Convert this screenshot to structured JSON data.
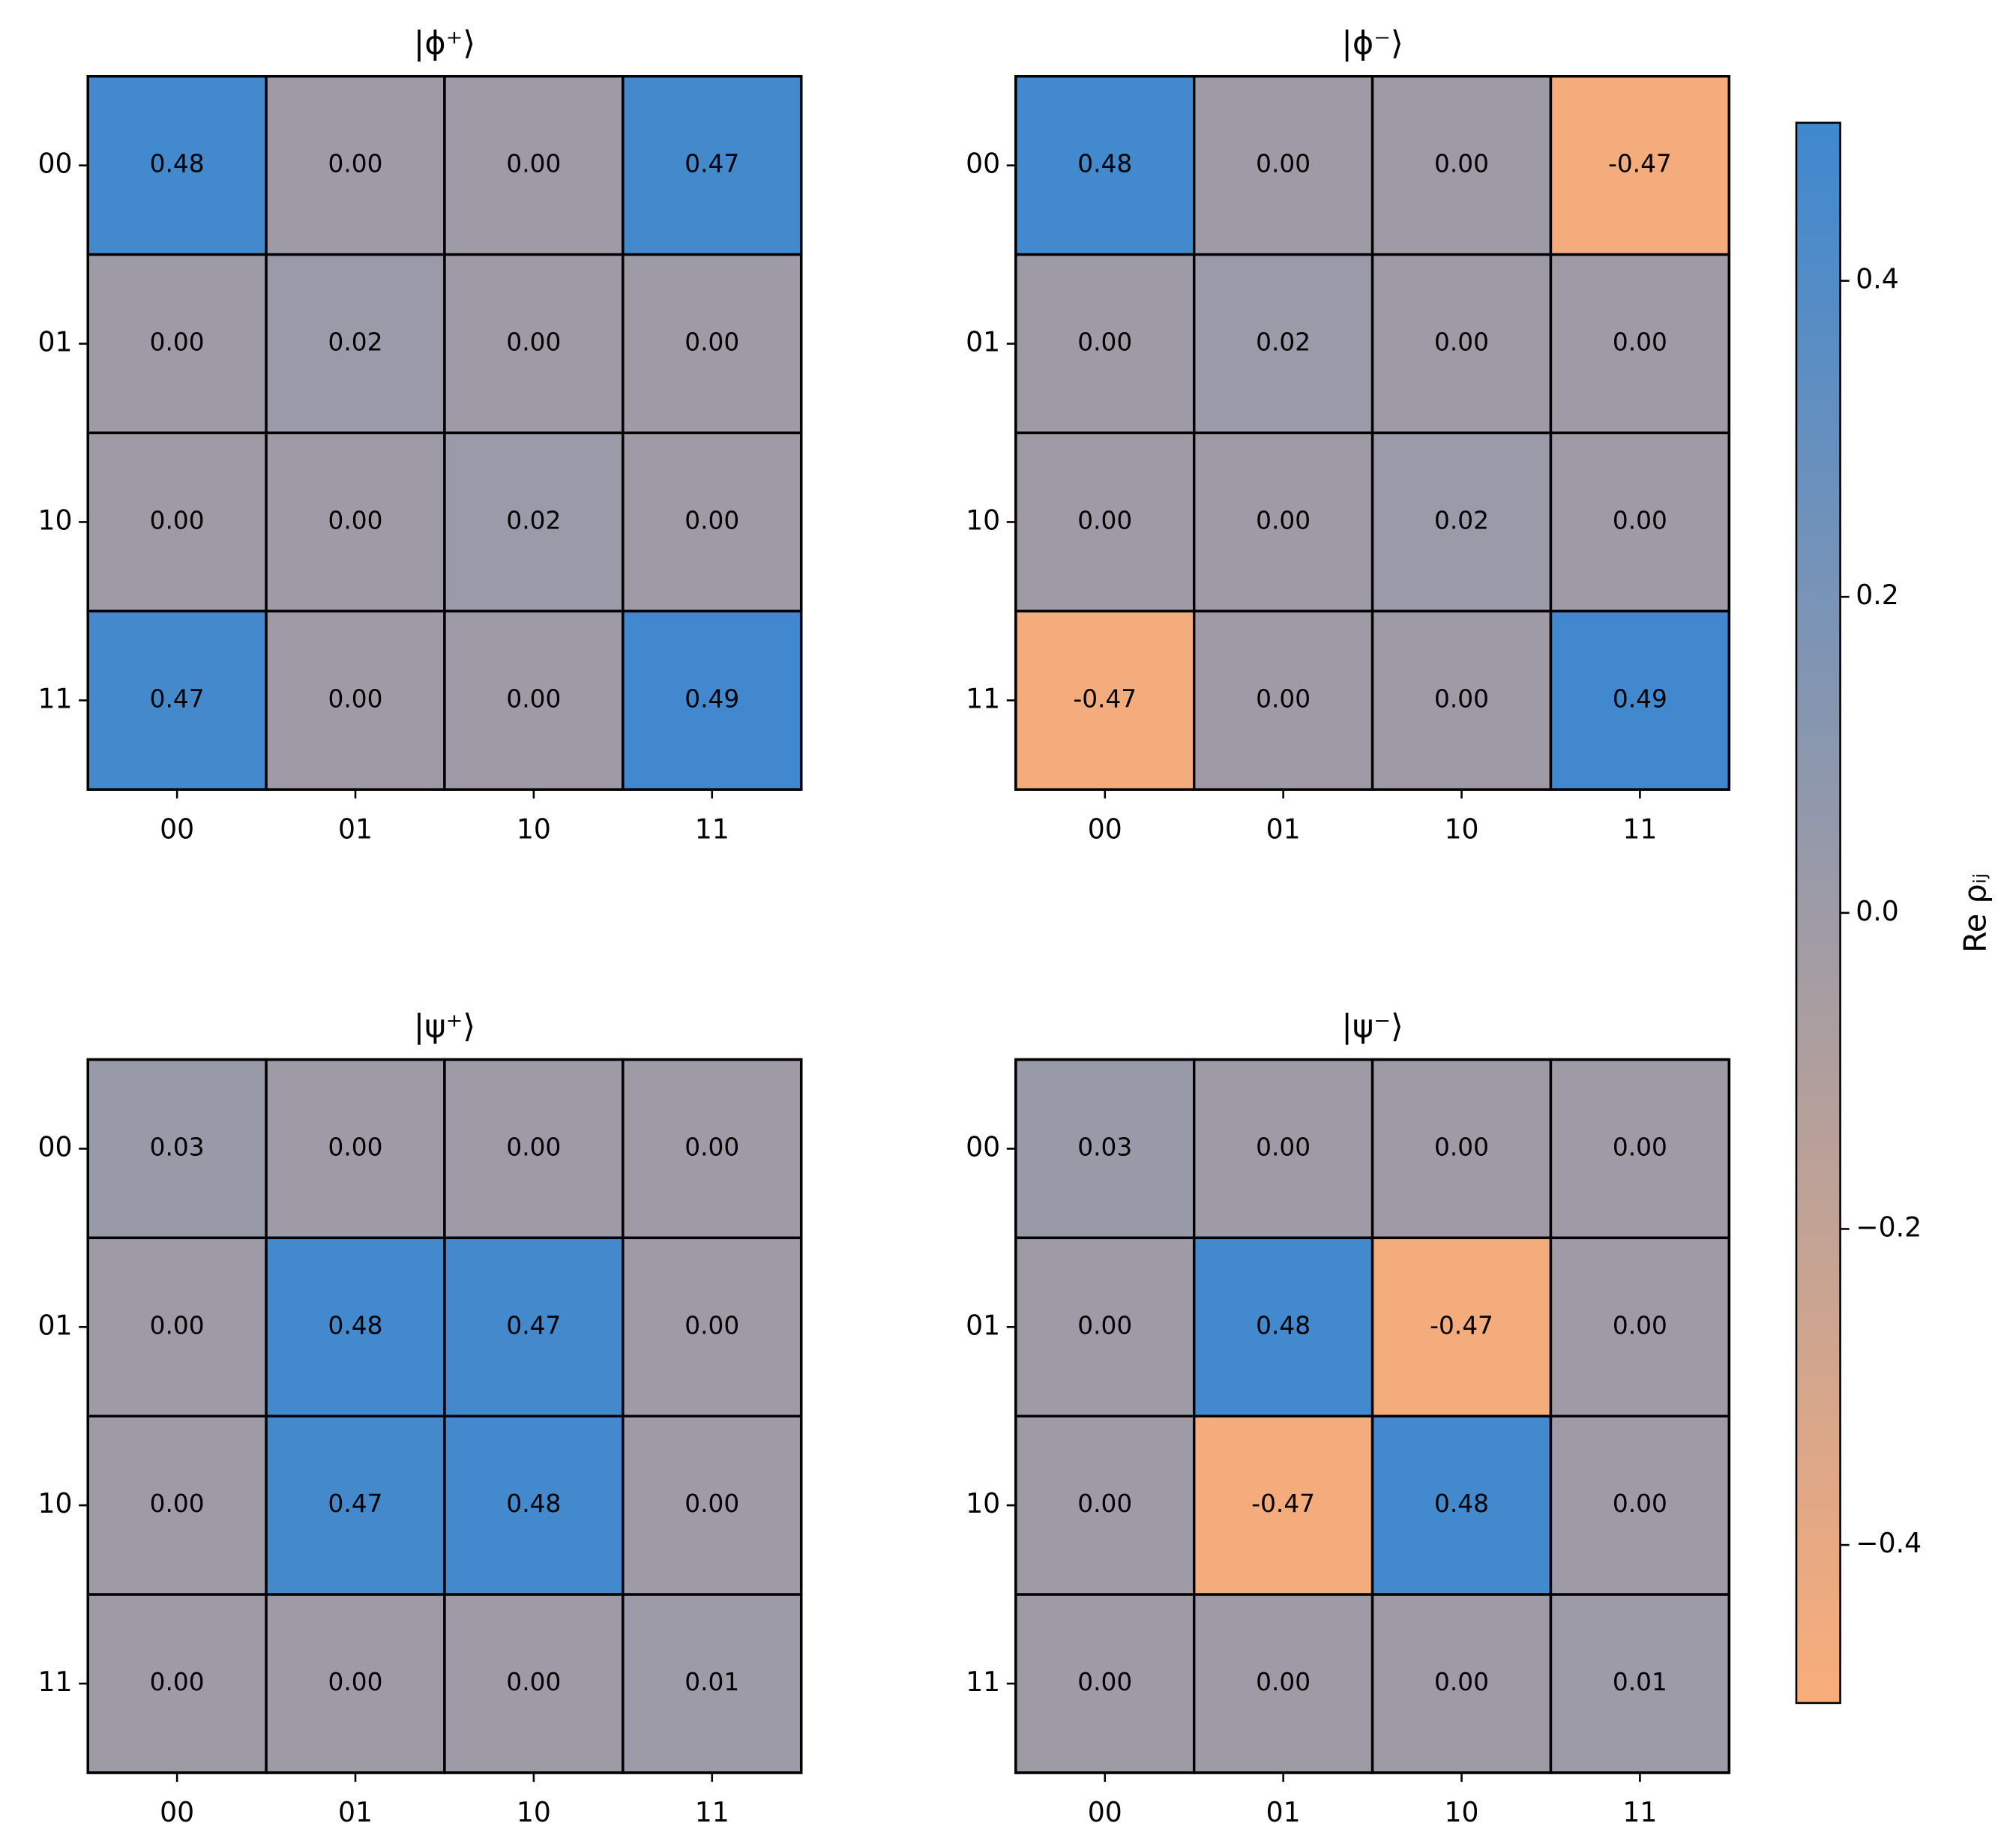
{
  "chart_data": [
    {
      "type": "heatmap",
      "title": "|ϕ⁺⟩",
      "x": [
        "00",
        "01",
        "10",
        "11"
      ],
      "y": [
        "00",
        "01",
        "10",
        "11"
      ],
      "values": [
        [
          0.48,
          0,
          0,
          0.47
        ],
        [
          0,
          0.02,
          0,
          0
        ],
        [
          0,
          0,
          0.02,
          0
        ],
        [
          0.47,
          0,
          0,
          0.49
        ]
      ],
      "value_labels": [
        [
          "0.48",
          "0.00",
          "0.00",
          "0.47"
        ],
        [
          "0.00",
          "0.02",
          "0.00",
          "0.00"
        ],
        [
          "0.00",
          "0.00",
          "0.02",
          "0.00"
        ],
        [
          "0.47",
          "0.00",
          "0.00",
          "0.49"
        ]
      ]
    },
    {
      "type": "heatmap",
      "title": "|ϕ⁻⟩",
      "x": [
        "00",
        "01",
        "10",
        "11"
      ],
      "y": [
        "00",
        "01",
        "10",
        "11"
      ],
      "values": [
        [
          0.48,
          0,
          0,
          -0.47
        ],
        [
          0,
          0.02,
          0,
          0
        ],
        [
          0,
          0,
          0.02,
          0
        ],
        [
          -0.47,
          0,
          0,
          0.49
        ]
      ],
      "value_labels": [
        [
          "0.48",
          "0.00",
          "0.00",
          "-0.47"
        ],
        [
          "0.00",
          "0.02",
          "0.00",
          "0.00"
        ],
        [
          "0.00",
          "0.00",
          "0.02",
          "0.00"
        ],
        [
          "-0.47",
          "0.00",
          "0.00",
          "0.49"
        ]
      ]
    },
    {
      "type": "heatmap",
      "title": "|ψ⁺⟩",
      "x": [
        "00",
        "01",
        "10",
        "11"
      ],
      "y": [
        "00",
        "01",
        "10",
        "11"
      ],
      "values": [
        [
          0.03,
          0,
          0,
          0
        ],
        [
          0,
          0.48,
          0.47,
          0
        ],
        [
          0,
          0.47,
          0.48,
          0
        ],
        [
          0,
          0,
          0,
          0.01
        ]
      ],
      "value_labels": [
        [
          "0.03",
          "0.00",
          "0.00",
          "0.00"
        ],
        [
          "0.00",
          "0.48",
          "0.47",
          "0.00"
        ],
        [
          "0.00",
          "0.47",
          "0.48",
          "0.00"
        ],
        [
          "0.00",
          "0.00",
          "0.00",
          "0.01"
        ]
      ]
    },
    {
      "type": "heatmap",
      "title": "|ψ⁻⟩",
      "x": [
        "00",
        "01",
        "10",
        "11"
      ],
      "y": [
        "00",
        "01",
        "10",
        "11"
      ],
      "values": [
        [
          0.03,
          0,
          0,
          0
        ],
        [
          0,
          0.48,
          -0.47,
          0
        ],
        [
          0,
          -0.47,
          0.48,
          0
        ],
        [
          0,
          0,
          0,
          0.01
        ]
      ],
      "value_labels": [
        [
          "0.03",
          "0.00",
          "0.00",
          "0.00"
        ],
        [
          "0.00",
          "0.48",
          "-0.47",
          "0.00"
        ],
        [
          "0.00",
          "-0.47",
          "0.48",
          "0.00"
        ],
        [
          "0.00",
          "0.00",
          "0.00",
          "0.01"
        ]
      ]
    },
    {
      "type": "colorbar",
      "label": "Re ρᵢⱼ",
      "lim": [
        -0.5,
        0.5
      ],
      "ticks": [
        {
          "value": -0.4,
          "label": "−0.4"
        },
        {
          "value": -0.2,
          "label": "−0.2"
        },
        {
          "value": 0,
          "label": "0.0"
        },
        0.2,
        0.4
      ],
      "colors": [
        "#f9ad7a",
        "#9e9ba6",
        "#3f88cf"
      ]
    }
  ]
}
